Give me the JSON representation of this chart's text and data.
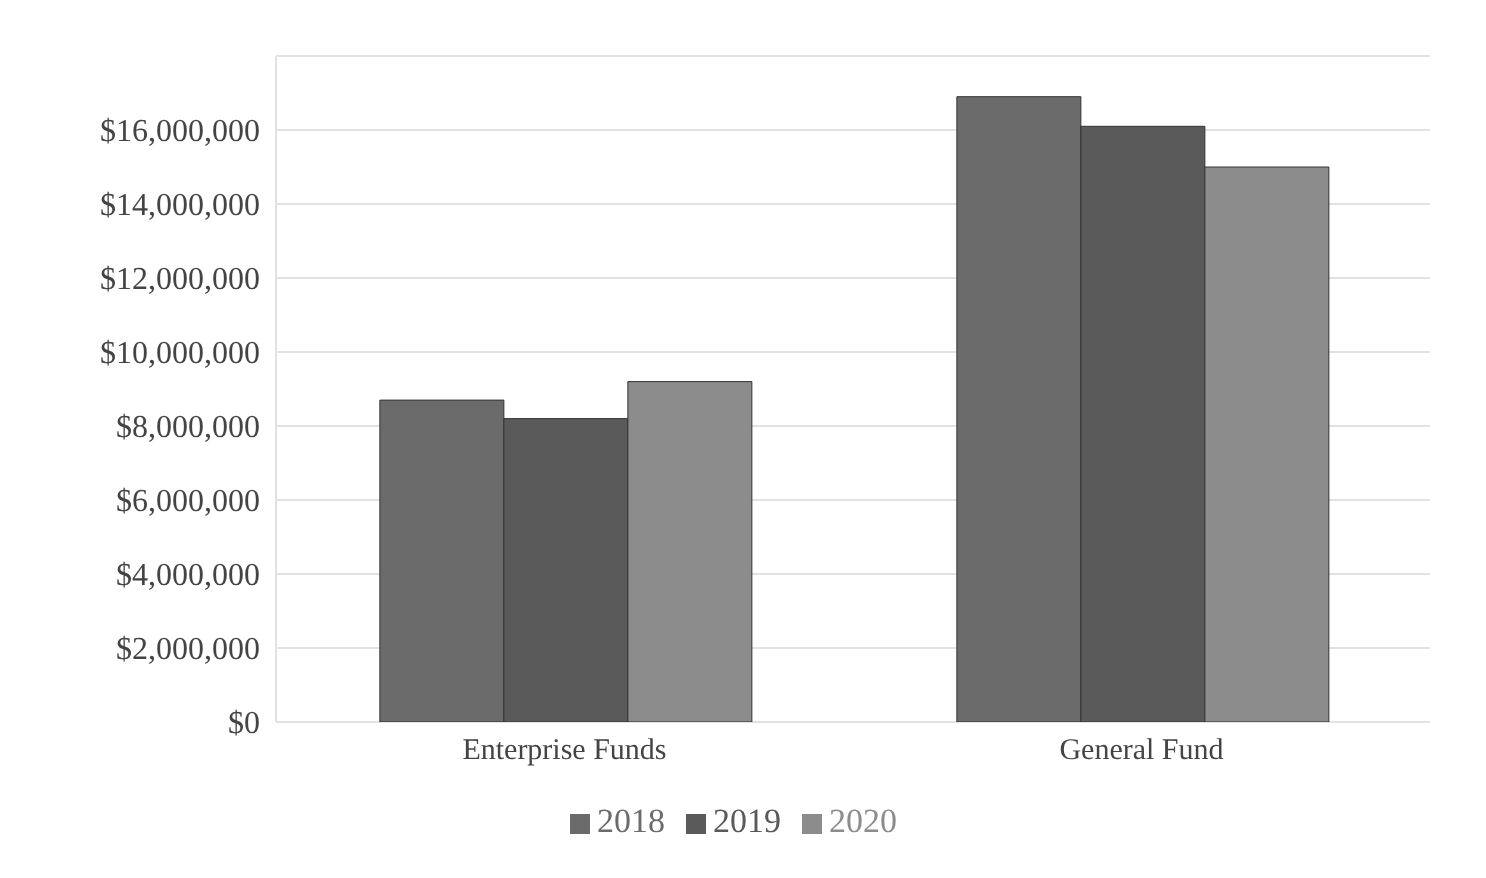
{
  "chart_data": {
    "type": "bar",
    "categories": [
      "Enterprise Funds",
      "General Fund"
    ],
    "series": [
      {
        "name": "2018",
        "color": "#6b6b6b",
        "values": [
          8700000,
          16900000
        ]
      },
      {
        "name": "2019",
        "color": "#5a5a5a",
        "values": [
          8200000,
          16100000
        ]
      },
      {
        "name": "2020",
        "color": "#8c8c8c",
        "values": [
          9200000,
          15000000
        ]
      }
    ],
    "ylim": [
      0,
      18000000
    ],
    "yticks": [
      {
        "value": 0,
        "label": "$0"
      },
      {
        "value": 2000000,
        "label": "$2,000,000"
      },
      {
        "value": 4000000,
        "label": "$4,000,000"
      },
      {
        "value": 6000000,
        "label": "$6,000,000"
      },
      {
        "value": 8000000,
        "label": "$8,000,000"
      },
      {
        "value": 10000000,
        "label": "$10,000,000"
      },
      {
        "value": 12000000,
        "label": "$12,000,000"
      },
      {
        "value": 14000000,
        "label": "$14,000,000"
      },
      {
        "value": 16000000,
        "label": "$16,000,000"
      }
    ],
    "grid": "y",
    "legend": "bottom"
  }
}
